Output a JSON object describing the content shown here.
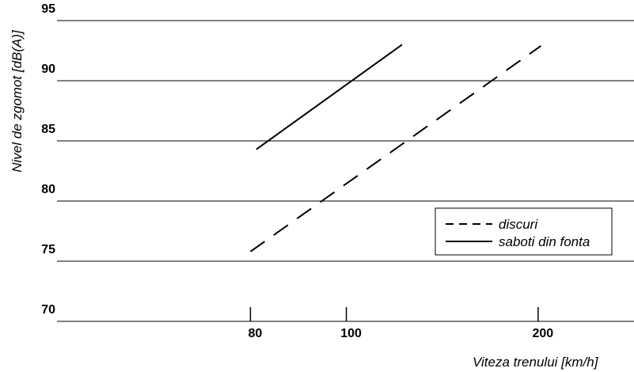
{
  "chart_data": {
    "type": "line",
    "x_label": "Viteza trenului [km/h]",
    "y_label": "Nivel de zgomot [dB(A)]",
    "xscale": "reciprocal",
    "xlim": [
      57,
      400
    ],
    "xticks": [
      80,
      100,
      200
    ],
    "ylim": [
      70,
      95
    ],
    "yticks": [
      70,
      75,
      80,
      85,
      90,
      95
    ],
    "grid": true,
    "legend": "right",
    "series": [
      {
        "name": "discuri",
        "color": "#000000",
        "dash": true,
        "x": [
          80,
          203
        ],
        "values": [
          75.8,
          92.9
        ]
      },
      {
        "name": "saboti din fonta",
        "color": "#000000",
        "dash": false,
        "x": [
          81,
          117
        ],
        "values": [
          84.3,
          93.0
        ]
      }
    ]
  }
}
